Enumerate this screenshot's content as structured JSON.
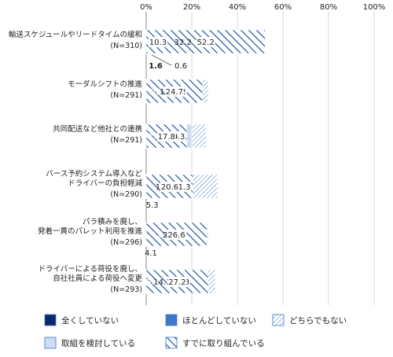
{
  "chart_data": {
    "type": "bar",
    "orientation": "horizontal-stacked-100",
    "x_ticks": [
      "0%",
      "20%",
      "40%",
      "60%",
      "80%",
      "100%"
    ],
    "xlim": [
      0,
      100
    ],
    "legend_position": "bottom",
    "categories": [
      {
        "label": "輸送スケジュールやリードタイムの緩和",
        "n": "(N=310)"
      },
      {
        "label": "モーダルシフトの推進",
        "n": "(N=291)"
      },
      {
        "label": "共同配送など他社との連携",
        "n": "(N=291)"
      },
      {
        "label": "バース予約システム導入などドライバーの負担軽減",
        "n": "(N=290)"
      },
      {
        "label": "パラ積みを廃し、発着一貫のパレット利用を推進",
        "n": "(N=296)"
      },
      {
        "label": "ドライバーによる荷役を廃し、自社社員による荷役へ変更",
        "n": "(N=293)"
      }
    ],
    "series": [
      {
        "name": "全くしていない",
        "color": "#0b2a6b",
        "values": [
          1.6,
          12.5,
          19.7,
          17.5,
          12.5,
          14.4
        ]
      },
      {
        "name": "ほとんどしていない",
        "color": "#3f78c8",
        "values": [
          0.6,
          7.2,
          7.2,
          5.3,
          4.1,
          5.6
        ]
      },
      {
        "name": "どちらでもない",
        "color": "#3f78c8",
        "values": [
          10.3,
          27.2,
          26.3,
          31.3,
          27.2,
          30.3
        ]
      },
      {
        "name": "取組を検討している",
        "color": "#cfdcf2",
        "values": [
          32.2,
          19.4,
          20.0,
          15.9,
          22.2,
          14.1
        ]
      },
      {
        "name": "すでに取り組んでいる",
        "color": "#2e5fae",
        "values": [
          52.2,
          24.7,
          17.8,
          20.6,
          26.6,
          27.2
        ]
      }
    ]
  }
}
